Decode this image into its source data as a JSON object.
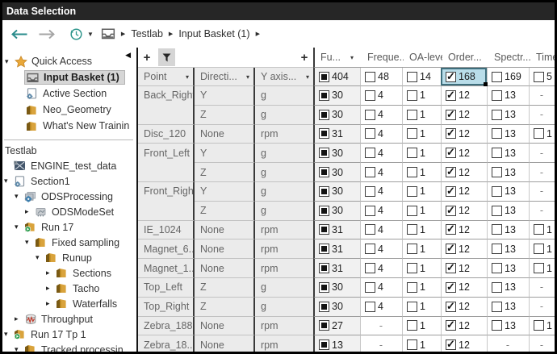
{
  "window": {
    "title": "Data Selection"
  },
  "nav": {
    "breadcrumb": [
      "Testlab",
      "Input Basket (1)"
    ]
  },
  "sidebar": {
    "quick_access": {
      "label": "Quick Access",
      "items": [
        {
          "label": "Input Basket (1)",
          "icon": "inbox-tray",
          "selected": true
        },
        {
          "label": "Active Section",
          "icon": "doc-gear",
          "selected": false
        },
        {
          "label": "Neo_Geometry",
          "icon": "folder",
          "selected": false
        },
        {
          "label": "What's New Trainin",
          "icon": "folder",
          "selected": false
        }
      ]
    },
    "tree_root_label": "Testlab",
    "tree": [
      {
        "label": "ENGINE_test_data",
        "icon": "project",
        "level": 0,
        "expander": "none"
      },
      {
        "label": "Section1",
        "icon": "doc-gear",
        "level": 0,
        "expander": "open"
      },
      {
        "label": "ODSProcessing",
        "icon": "processing",
        "level": 1,
        "expander": "open"
      },
      {
        "label": "ODSModeSet",
        "icon": "modeset",
        "level": 2,
        "expander": "closed"
      },
      {
        "label": "Run 17",
        "icon": "folder-run",
        "level": 1,
        "expander": "open"
      },
      {
        "label": "Fixed sampling",
        "icon": "folder",
        "level": 2,
        "expander": "open"
      },
      {
        "label": "Runup",
        "icon": "folder",
        "level": 3,
        "expander": "open"
      },
      {
        "label": "Sections",
        "icon": "folder",
        "level": 4,
        "expander": "closed"
      },
      {
        "label": "Tacho",
        "icon": "folder",
        "level": 4,
        "expander": "closed"
      },
      {
        "label": "Waterfalls",
        "icon": "folder",
        "level": 4,
        "expander": "closed"
      },
      {
        "label": "Throughput",
        "icon": "throughput",
        "level": 1,
        "expander": "closed"
      },
      {
        "label": "Run 17 Tp 1",
        "icon": "folder-run",
        "level": 0,
        "expander": "open"
      },
      {
        "label": "Tracked processin",
        "icon": "folder",
        "level": 1,
        "expander": "open"
      }
    ]
  },
  "table": {
    "toolbar": {
      "add_label": "+",
      "add_column_label": "+"
    },
    "left_headers": [
      {
        "label": "Point"
      },
      {
        "label": "Directi..."
      },
      {
        "label": "Y axis..."
      }
    ],
    "data_headers": [
      {
        "label": "Fu...",
        "arrow": true,
        "key": "function"
      },
      {
        "label": "Freque...",
        "arrow": false,
        "key": "frequency"
      },
      {
        "label": "OA-level",
        "arrow": false,
        "key": "oa-level"
      },
      {
        "label": "Order...",
        "arrow": false,
        "key": "order"
      },
      {
        "label": "Spectr...",
        "arrow": false,
        "key": "spectrum"
      },
      {
        "label": "Time",
        "arrow": false,
        "key": "time"
      }
    ],
    "totals": [
      {
        "state": "partial",
        "count": "404"
      },
      {
        "state": "unchecked",
        "count": "48"
      },
      {
        "state": "unchecked",
        "count": "14"
      },
      {
        "state": "checked",
        "count": "168",
        "selected": true
      },
      {
        "state": "unchecked",
        "count": "169"
      },
      {
        "state": "unchecked",
        "count": "5"
      }
    ],
    "rows": [
      {
        "point": "Back_Right",
        "direction": "Y",
        "y_axis": "g",
        "cells": [
          [
            "partial",
            "30"
          ],
          [
            "unchecked",
            "4"
          ],
          [
            "unchecked",
            "1"
          ],
          [
            "checked",
            "12"
          ],
          [
            "unchecked",
            "13"
          ],
          [
            "dash",
            ""
          ]
        ]
      },
      {
        "point": "",
        "direction": "Z",
        "y_axis": "g",
        "cells": [
          [
            "partial",
            "30"
          ],
          [
            "unchecked",
            "4"
          ],
          [
            "unchecked",
            "1"
          ],
          [
            "checked",
            "12"
          ],
          [
            "unchecked",
            "13"
          ],
          [
            "dash",
            ""
          ]
        ]
      },
      {
        "point": "Disc_120",
        "direction": "None",
        "y_axis": "rpm",
        "cells": [
          [
            "partial",
            "31"
          ],
          [
            "unchecked",
            "4"
          ],
          [
            "unchecked",
            "1"
          ],
          [
            "checked",
            "12"
          ],
          [
            "unchecked",
            "13"
          ],
          [
            "unchecked",
            "1"
          ]
        ]
      },
      {
        "point": "Front_Left",
        "direction": "Y",
        "y_axis": "g",
        "cells": [
          [
            "partial",
            "30"
          ],
          [
            "unchecked",
            "4"
          ],
          [
            "unchecked",
            "1"
          ],
          [
            "checked",
            "12"
          ],
          [
            "unchecked",
            "13"
          ],
          [
            "dash",
            ""
          ]
        ]
      },
      {
        "point": "",
        "direction": "Z",
        "y_axis": "g",
        "cells": [
          [
            "partial",
            "30"
          ],
          [
            "unchecked",
            "4"
          ],
          [
            "unchecked",
            "1"
          ],
          [
            "checked",
            "12"
          ],
          [
            "unchecked",
            "13"
          ],
          [
            "dash",
            ""
          ]
        ]
      },
      {
        "point": "Front_Right",
        "direction": "Y",
        "y_axis": "g",
        "cells": [
          [
            "partial",
            "30"
          ],
          [
            "unchecked",
            "4"
          ],
          [
            "unchecked",
            "1"
          ],
          [
            "checked",
            "12"
          ],
          [
            "unchecked",
            "13"
          ],
          [
            "dash",
            ""
          ]
        ]
      },
      {
        "point": "",
        "direction": "Z",
        "y_axis": "g",
        "cells": [
          [
            "partial",
            "30"
          ],
          [
            "unchecked",
            "4"
          ],
          [
            "unchecked",
            "1"
          ],
          [
            "checked",
            "12"
          ],
          [
            "unchecked",
            "13"
          ],
          [
            "dash",
            ""
          ]
        ]
      },
      {
        "point": "IE_1024",
        "direction": "None",
        "y_axis": "rpm",
        "cells": [
          [
            "partial",
            "31"
          ],
          [
            "unchecked",
            "4"
          ],
          [
            "unchecked",
            "1"
          ],
          [
            "checked",
            "12"
          ],
          [
            "unchecked",
            "13"
          ],
          [
            "unchecked",
            "1"
          ]
        ]
      },
      {
        "point": "Magnet_6...",
        "direction": "None",
        "y_axis": "rpm",
        "cells": [
          [
            "partial",
            "31"
          ],
          [
            "unchecked",
            "4"
          ],
          [
            "unchecked",
            "1"
          ],
          [
            "checked",
            "12"
          ],
          [
            "unchecked",
            "13"
          ],
          [
            "unchecked",
            "1"
          ]
        ]
      },
      {
        "point": "Magnet_1...",
        "direction": "None",
        "y_axis": "rpm",
        "cells": [
          [
            "partial",
            "31"
          ],
          [
            "unchecked",
            "4"
          ],
          [
            "unchecked",
            "1"
          ],
          [
            "checked",
            "12"
          ],
          [
            "unchecked",
            "13"
          ],
          [
            "unchecked",
            "1"
          ]
        ]
      },
      {
        "point": "Top_Left",
        "direction": "Z",
        "y_axis": "g",
        "cells": [
          [
            "partial",
            "30"
          ],
          [
            "unchecked",
            "4"
          ],
          [
            "unchecked",
            "1"
          ],
          [
            "checked",
            "12"
          ],
          [
            "unchecked",
            "13"
          ],
          [
            "dash",
            ""
          ]
        ]
      },
      {
        "point": "Top_Right",
        "direction": "Z",
        "y_axis": "g",
        "cells": [
          [
            "partial",
            "30"
          ],
          [
            "unchecked",
            "4"
          ],
          [
            "unchecked",
            "1"
          ],
          [
            "checked",
            "12"
          ],
          [
            "unchecked",
            "13"
          ],
          [
            "dash",
            ""
          ]
        ]
      },
      {
        "point": "Zebra_188",
        "direction": "None",
        "y_axis": "rpm",
        "cells": [
          [
            "partial",
            "27"
          ],
          [
            "dash",
            ""
          ],
          [
            "unchecked",
            "1"
          ],
          [
            "checked",
            "12"
          ],
          [
            "unchecked",
            "13"
          ],
          [
            "unchecked",
            "1"
          ]
        ]
      },
      {
        "point": "Zebra_18...",
        "direction": "None",
        "y_axis": "rpm",
        "cells": [
          [
            "partial",
            "13"
          ],
          [
            "dash",
            ""
          ],
          [
            "unchecked",
            "1"
          ],
          [
            "checked",
            "12"
          ],
          [
            "dash",
            ""
          ],
          [
            "dash",
            ""
          ]
        ]
      }
    ]
  },
  "colors": {
    "accent_teal": "#2a8c8c",
    "selection_fill": "#b9dde9",
    "selection_border": "#3e6e7c",
    "titlebar_bg": "#262626",
    "left_panel_bg": "#ebebeb",
    "folder_gold": "#d9a33c"
  }
}
